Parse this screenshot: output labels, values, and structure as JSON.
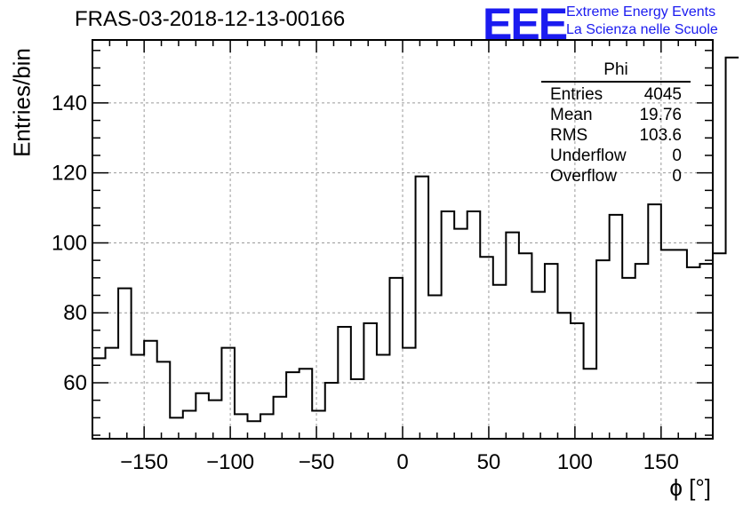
{
  "title": "FRAS-03-2018-12-13-00166",
  "logo": {
    "mark": "EEE",
    "line1": "Extreme Energy Events",
    "line2": "La Scienza nelle Scuole"
  },
  "stats_box": {
    "name": "Phi",
    "rows": [
      {
        "label": "Entries",
        "value": "4045"
      },
      {
        "label": "Mean",
        "value": "19.76"
      },
      {
        "label": "RMS",
        "value": "103.6"
      },
      {
        "label": "Underflow",
        "value": "0"
      },
      {
        "label": "Overflow",
        "value": "0"
      }
    ]
  },
  "chart_data": {
    "type": "histogram",
    "xlabel": "ϕ [°]",
    "ylabel": "Entries/bin",
    "xlim": [
      -180,
      180
    ],
    "ylim": [
      44,
      158
    ],
    "grid": true,
    "bin_width": 7.5,
    "x_ticks": [
      -150,
      -100,
      -50,
      0,
      50,
      100,
      150
    ],
    "x_tick_labels": [
      "−150",
      "−100",
      "−50",
      "0",
      "50",
      "100",
      "150"
    ],
    "y_ticks": [
      60,
      80,
      100,
      120,
      140
    ],
    "y_tick_labels": [
      "60",
      "80",
      "100",
      "120",
      "140"
    ],
    "values": [
      67,
      70,
      87,
      68,
      72,
      66,
      50,
      52,
      57,
      55,
      70,
      51,
      49,
      51,
      56,
      63,
      64,
      52,
      60,
      76,
      61,
      77,
      68,
      90,
      70,
      119,
      85,
      109,
      104,
      109,
      96,
      88,
      103,
      97,
      86,
      94,
      80,
      77,
      64,
      95,
      108,
      90,
      94,
      111,
      98,
      98,
      93,
      94,
      97,
      153
    ]
  }
}
